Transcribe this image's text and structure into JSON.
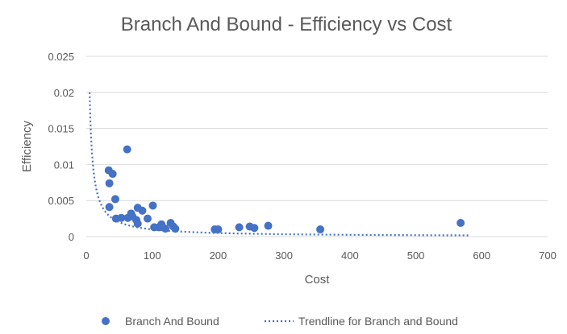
{
  "chart_data": {
    "type": "scatter",
    "title": "Branch And Bound - Efficiency vs Cost",
    "xlabel": "Cost",
    "ylabel": "Efficiency",
    "xlim": [
      0,
      700
    ],
    "ylim": [
      0,
      0.025
    ],
    "x_ticks": [
      "0",
      "100",
      "200",
      "300",
      "400",
      "500",
      "600",
      "700"
    ],
    "y_ticks": [
      "0",
      "0.005",
      "0.01",
      "0.015",
      "0.02",
      "0.025"
    ],
    "grid": "horizontal",
    "legend_position": "bottom",
    "colors": {
      "series": "#4472C4",
      "trendline": "#4472C4",
      "grid": "#d9d9d9",
      "text": "#595959"
    },
    "series": [
      {
        "name": "Branch And Bound",
        "points": [
          [
            34,
            0.0092
          ],
          [
            35,
            0.0074
          ],
          [
            35,
            0.0041
          ],
          [
            40,
            0.0087
          ],
          [
            44,
            0.0052
          ],
          [
            45,
            0.0025
          ],
          [
            53,
            0.0026
          ],
          [
            62,
            0.0121
          ],
          [
            63,
            0.0026
          ],
          [
            68,
            0.0032
          ],
          [
            70,
            0.0028
          ],
          [
            76,
            0.0023
          ],
          [
            78,
            0.004
          ],
          [
            78,
            0.0018
          ],
          [
            85,
            0.0036
          ],
          [
            93,
            0.0025
          ],
          [
            101,
            0.0043
          ],
          [
            103,
            0.0013
          ],
          [
            110,
            0.0013
          ],
          [
            114,
            0.0017
          ],
          [
            120,
            0.0011
          ],
          [
            128,
            0.0019
          ],
          [
            132,
            0.0014
          ],
          [
            135,
            0.0011
          ],
          [
            195,
            0.001
          ],
          [
            200,
            0.001
          ],
          [
            232,
            0.0013
          ],
          [
            248,
            0.0014
          ],
          [
            255,
            0.0012
          ],
          [
            276,
            0.0015
          ],
          [
            355,
            0.001
          ],
          [
            568,
            0.0019
          ]
        ]
      }
    ],
    "trendline": {
      "name": "Trendline for Branch and Bound",
      "type": "power",
      "x_range": [
        5,
        580
      ],
      "coefficient": 0.1,
      "exponent": -1.0
    }
  }
}
